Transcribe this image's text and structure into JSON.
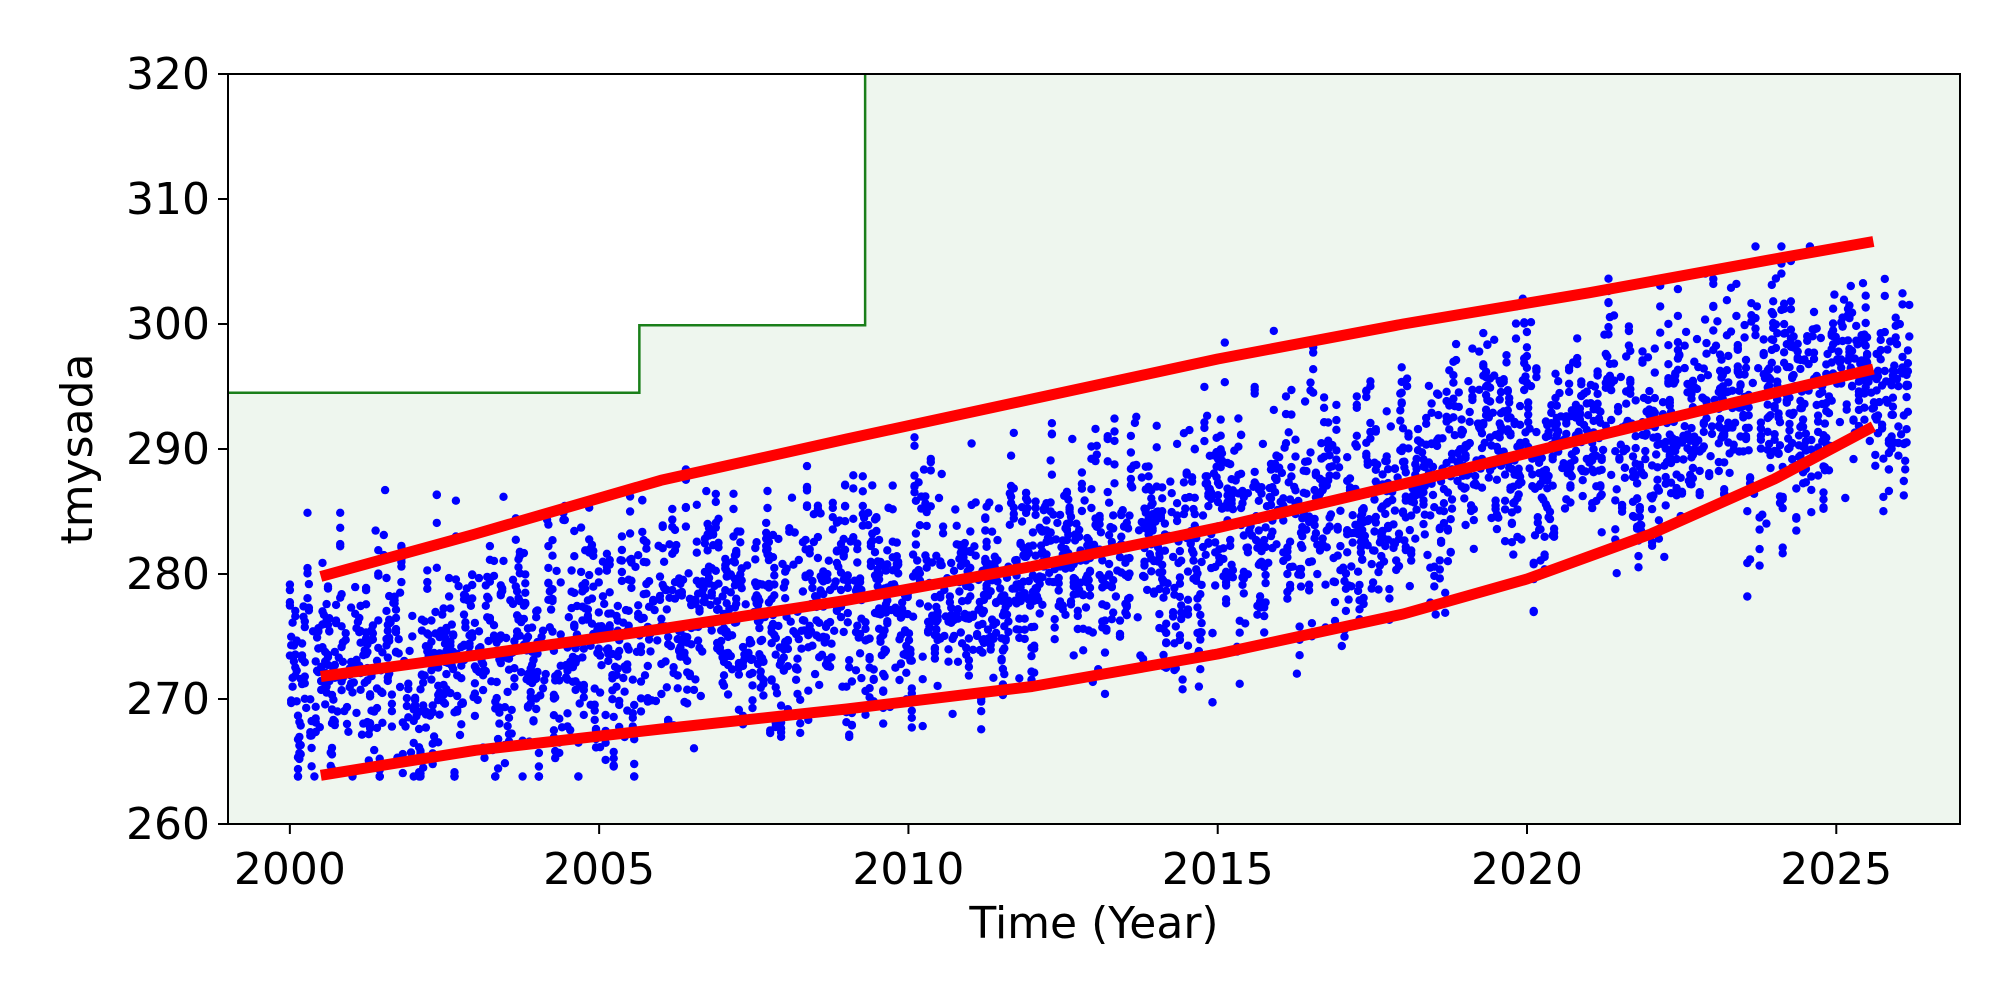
{
  "chart_data": {
    "type": "scatter",
    "title": "",
    "xlabel": "Time (Year)",
    "ylabel": "tmysada",
    "xlim": [
      1999.0,
      2027.0
    ],
    "ylim": [
      260,
      320
    ],
    "xticks": [
      2000,
      2005,
      2010,
      2015,
      2020,
      2025
    ],
    "yticks": [
      260,
      270,
      280,
      290,
      300,
      310,
      320
    ],
    "grid": false,
    "legend": null,
    "colors": {
      "points": "#0000ff",
      "trend_lines": "#ff0000",
      "limit_line": "#1a7f1a",
      "limit_fill": "#eef6ee"
    },
    "limit_step": [
      {
        "x": 1999.0,
        "y": 294.5
      },
      {
        "x": 2005.65,
        "y": 294.5
      },
      {
        "x": 2005.65,
        "y": 299.9
      },
      {
        "x": 2009.3,
        "y": 299.9
      },
      {
        "x": 2009.3,
        "y": 320
      }
    ],
    "trend_lines": [
      {
        "role": "upper",
        "x": [
          2000.5,
          2003,
          2006,
          2009,
          2012,
          2015,
          2018,
          2021,
          2024,
          2025.6
        ],
        "y": [
          279.8,
          283.2,
          287.5,
          290.8,
          294.0,
          297.2,
          300.0,
          302.5,
          305.2,
          306.6
        ]
      },
      {
        "role": "center",
        "x": [
          2000.5,
          2003,
          2006,
          2009,
          2012,
          2015,
          2018,
          2021,
          2024,
          2025.6
        ],
        "y": [
          271.8,
          273.5,
          275.6,
          277.9,
          280.6,
          283.7,
          287.2,
          290.9,
          294.5,
          296.4
        ]
      },
      {
        "role": "lower",
        "x": [
          2000.5,
          2003,
          2006,
          2009,
          2012,
          2015,
          2018,
          2020,
          2022,
          2024,
          2025.6
        ],
        "y": [
          263.9,
          265.9,
          267.6,
          269.2,
          271.0,
          273.6,
          276.8,
          279.6,
          283.2,
          287.6,
          291.8
        ]
      }
    ],
    "scatter_envelope": {
      "x_range": [
        2000.0,
        2026.2
      ],
      "trend": [
        {
          "x": 2000,
          "y": 271.5
        },
        {
          "x": 2005,
          "y": 274.5
        },
        {
          "x": 2010,
          "y": 279.0
        },
        {
          "x": 2015,
          "y": 283.5
        },
        {
          "x": 2020,
          "y": 290.0
        },
        {
          "x": 2026,
          "y": 296.5
        }
      ],
      "typical_spread": 5.0,
      "max_observed": 306.2,
      "min_observed": 263.8
    }
  }
}
